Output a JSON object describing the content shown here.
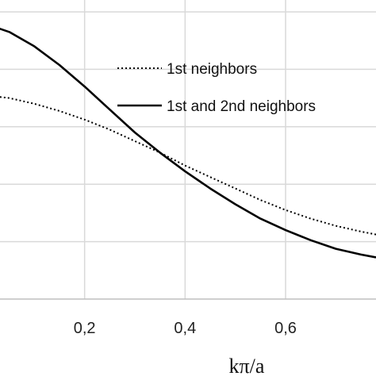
{
  "chart_data": {
    "type": "line",
    "xlabel": "kπ/a",
    "ylabel": "",
    "title": "",
    "xlim": [
      0,
      0.78
    ],
    "ylim": [
      0,
      1
    ],
    "x_ticks": [
      {
        "value": 0.2,
        "label": "0,2"
      },
      {
        "value": 0.4,
        "label": "0,4"
      },
      {
        "value": 0.6,
        "label": "0,6"
      }
    ],
    "y_gridlines": [
      0.2,
      0.4,
      0.6,
      0.8,
      1.0
    ],
    "grid": true,
    "legend_position": "top-right",
    "series": [
      {
        "name": "1st neighbors",
        "style": "dotted",
        "color": "#000000",
        "x": [
          0.0,
          0.05,
          0.1,
          0.15,
          0.2,
          0.25,
          0.3,
          0.35,
          0.4,
          0.45,
          0.5,
          0.55,
          0.6,
          0.65,
          0.7,
          0.75,
          0.78
        ],
        "y": [
          0.71,
          0.7,
          0.68,
          0.655,
          0.625,
          0.59,
          0.55,
          0.51,
          0.465,
          0.425,
          0.385,
          0.345,
          0.31,
          0.28,
          0.255,
          0.235,
          0.225
        ]
      },
      {
        "name": "1st and 2nd neighbors",
        "style": "solid",
        "color": "#000000",
        "x": [
          0.0,
          0.05,
          0.1,
          0.15,
          0.2,
          0.25,
          0.3,
          0.35,
          0.4,
          0.45,
          0.5,
          0.55,
          0.6,
          0.65,
          0.7,
          0.75,
          0.78
        ],
        "y": [
          0.96,
          0.93,
          0.88,
          0.815,
          0.74,
          0.66,
          0.58,
          0.51,
          0.445,
          0.385,
          0.33,
          0.28,
          0.24,
          0.205,
          0.175,
          0.155,
          0.145
        ]
      }
    ]
  }
}
